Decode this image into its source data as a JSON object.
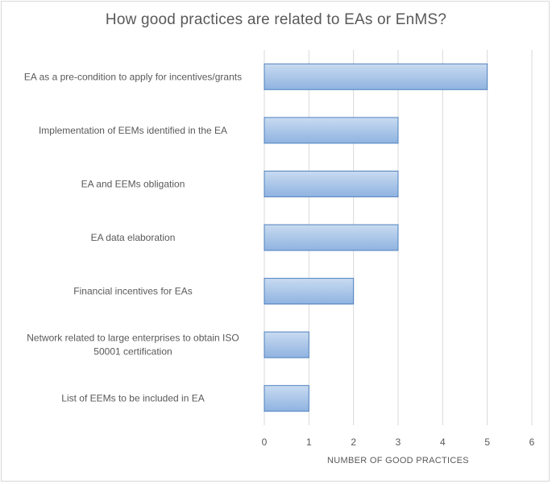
{
  "chart_data": {
    "type": "bar",
    "orientation": "horizontal",
    "title": "How good practices  are related to EAs or EnMS?",
    "categories": [
      "EA as a pre-condition to apply for incentives/grants",
      "Implementation of EEMs identified in the EA",
      "EA and EEMs obligation",
      "EA data elaboration",
      "Financial incentives for EAs",
      "Network related to large enterprises to obtain ISO 50001 certification",
      "List of EEMs to be included in EA"
    ],
    "category_lines": [
      [
        "EA as a pre-condition to apply for incentives/grants"
      ],
      [
        "Implementation of EEMs identified in the EA"
      ],
      [
        "EA and EEMs obligation"
      ],
      [
        "EA data elaboration"
      ],
      [
        "Financial incentives for EAs"
      ],
      [
        "Network related to large enterprises to obtain ISO",
        "50001 certification"
      ],
      [
        "List of EEMs to be included in EA"
      ]
    ],
    "values": [
      5,
      3,
      3,
      3,
      2,
      1,
      1
    ],
    "xlabel": "NUMBER OF GOOD PRACTICES",
    "ylabel": "",
    "xlim": [
      0,
      6
    ],
    "xticks": [
      "0",
      "1",
      "2",
      "3",
      "4",
      "5",
      "6"
    ],
    "grid": true,
    "legend": false,
    "colors": {
      "bar_fill_top": "#c9dbf1",
      "bar_fill_bottom": "#8fb3e0",
      "bar_stroke": "#4f81bd",
      "grid": "#d9d9d9",
      "text": "#595959"
    }
  }
}
